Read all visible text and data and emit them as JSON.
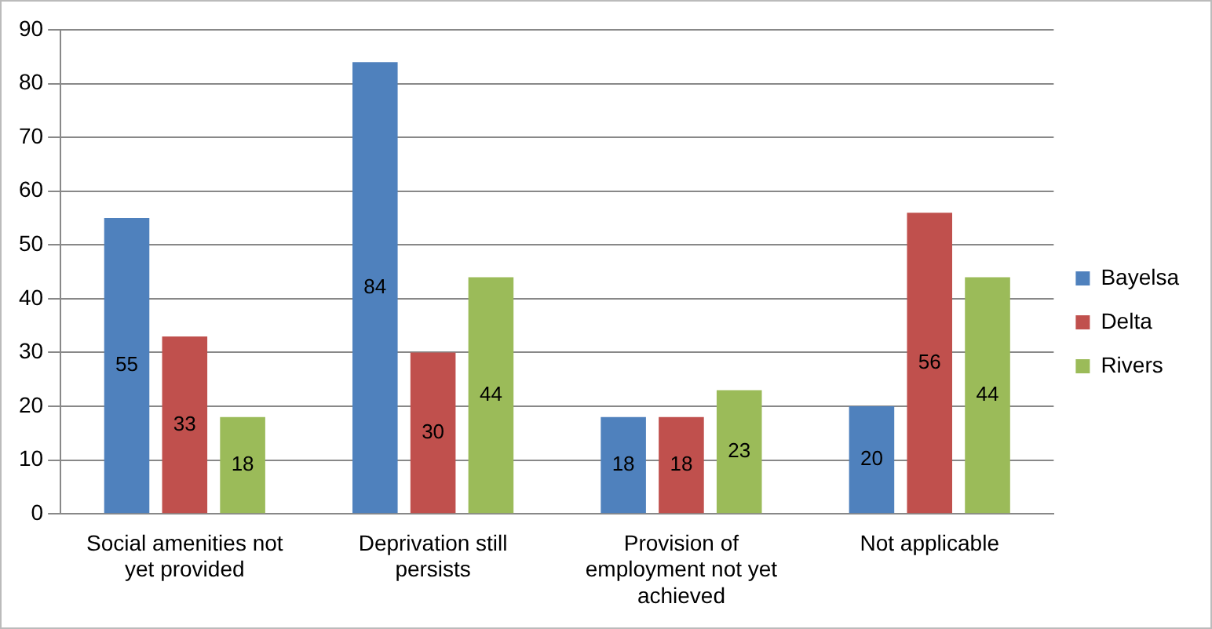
{
  "chart_data": {
    "type": "bar",
    "categories": [
      "Social amenities not yet provided",
      "Deprivation still persists",
      "Provision of employment not yet achieved",
      "Not applicable"
    ],
    "series": [
      {
        "name": "Bayelsa",
        "color": "#4f81bd",
        "values": [
          55,
          84,
          18,
          20
        ]
      },
      {
        "name": "Delta",
        "color": "#c0504d",
        "values": [
          33,
          30,
          18,
          56
        ]
      },
      {
        "name": "Rivers",
        "color": "#9bbb59",
        "values": [
          18,
          44,
          23,
          44
        ]
      }
    ],
    "ylim": [
      0,
      90
    ],
    "yticks": [
      0,
      10,
      20,
      30,
      40,
      50,
      60,
      70,
      80,
      90
    ],
    "grid": "y",
    "legend": "right",
    "data_labels": true
  }
}
